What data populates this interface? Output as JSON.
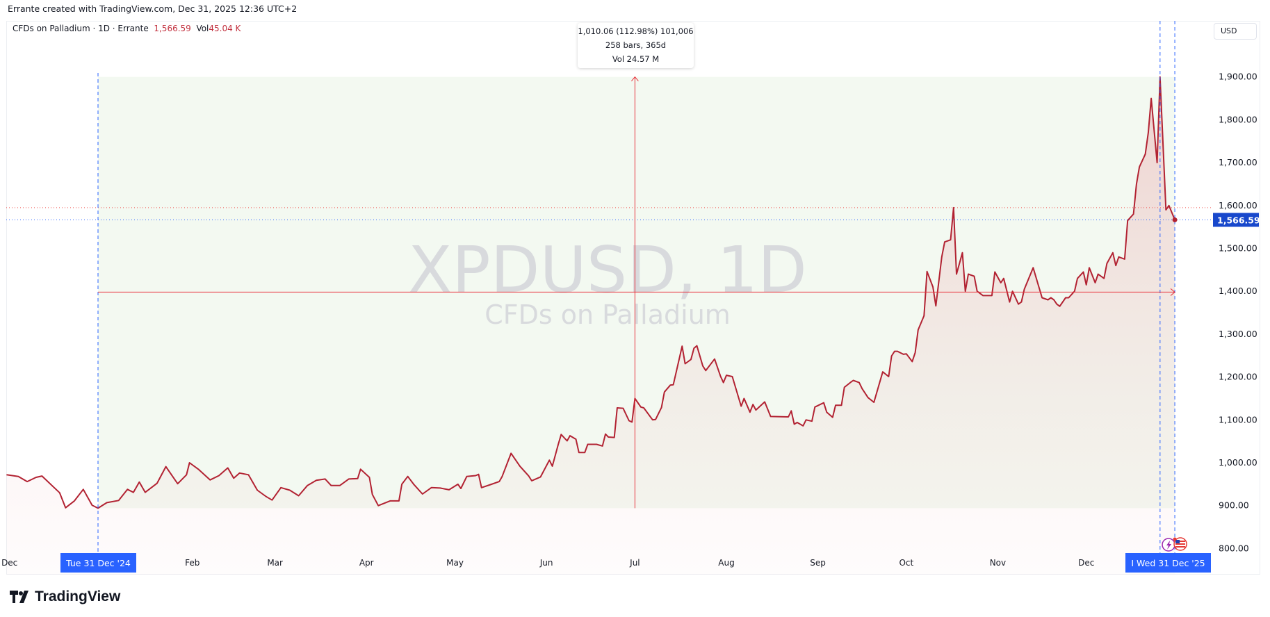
{
  "credit": "Errante created with TradingView.com, Dec 31, 2025 12:36 UTC+2",
  "legend": {
    "symbol_desc": "CFDs on Palladium · 1D · Errante",
    "last_price": "1,566.59",
    "vol_label": "Vol",
    "vol_value": "45.04 K"
  },
  "currency_button": "USD",
  "measure_tooltip": {
    "line1": "1,010.06 (112.98%) 101,006",
    "line2": "258 bars, 365d",
    "line3": "Vol 24.57 M"
  },
  "watermark": {
    "ticker": "XPDUSD, 1D",
    "name": "CFDs on Palladium"
  },
  "brand": "TradingView",
  "colors": {
    "line": "#b22232",
    "range_fill": "#f3f9f1",
    "measure": "#e8323c",
    "crosshair": "#2962ff",
    "price_label_bg": "#1848cc"
  },
  "icons": [
    "lightning-event-icon",
    "us-flag-icon",
    "tradingview-logo-icon"
  ],
  "chart_data": {
    "type": "area",
    "title": "",
    "xlabel": "",
    "ylabel": "",
    "ylim": [
      790,
      1930
    ],
    "xlim": [
      "2024-11-29",
      "2026-01-10"
    ],
    "grid": false,
    "y_ticks": [
      800,
      900,
      1000,
      1100,
      1200,
      1300,
      1400,
      1500,
      1600,
      1700,
      1800,
      1900
    ],
    "y_tick_labels": [
      "800.00",
      "900.00",
      "1,000.00",
      "1,100.00",
      "1,200.00",
      "1,300.00",
      "1,400.00",
      "1,500.00",
      "1,600.00",
      "1,700.00",
      "1,800.00",
      "1,900.00"
    ],
    "x_tick_labels": [
      {
        "date": "2024-12-01",
        "label": "Dec"
      },
      {
        "date": "2025-02-01",
        "label": "Feb"
      },
      {
        "date": "2025-03-01",
        "label": "Mar"
      },
      {
        "date": "2025-04-01",
        "label": "Apr"
      },
      {
        "date": "2025-05-01",
        "label": "May"
      },
      {
        "date": "2025-06-01",
        "label": "Jun"
      },
      {
        "date": "2025-07-01",
        "label": "Jul"
      },
      {
        "date": "2025-08-01",
        "label": "Aug"
      },
      {
        "date": "2025-09-01",
        "label": "Sep"
      },
      {
        "date": "2025-10-01",
        "label": "Oct"
      },
      {
        "date": "2025-11-01",
        "label": "Nov"
      },
      {
        "date": "2025-12-01",
        "label": "Dec"
      }
    ],
    "x_highlight_labels": [
      {
        "date": "2024-12-31",
        "label": "Tue 31 Dec '24"
      },
      {
        "date": "2025-12-31",
        "label": "Wed 31 Dec '25",
        "prefix": "I"
      }
    ],
    "last_price": 1566.59,
    "last_price_label": "1,566.59",
    "previous_close_line": 1595,
    "date_range_measure": {
      "start": "2024-12-31",
      "end": "2025-12-31",
      "low": 894,
      "high": 1900,
      "vertical_at": "2025-07-01",
      "horizontal_at": 1398
    },
    "crosshair_dates": [
      "2025-12-26",
      "2025-12-31"
    ],
    "series": [
      {
        "points": [
          [
            "2024-11-30",
            972
          ],
          [
            "2024-12-04",
            968
          ],
          [
            "2024-12-07",
            956
          ],
          [
            "2024-12-10",
            966
          ],
          [
            "2024-12-12",
            969
          ],
          [
            "2024-12-16",
            943
          ],
          [
            "2024-12-18",
            930
          ],
          [
            "2024-12-20",
            895
          ],
          [
            "2024-12-23",
            911
          ],
          [
            "2024-12-26",
            938
          ],
          [
            "2024-12-29",
            901
          ],
          [
            "2024-12-31",
            894
          ],
          [
            "2025-01-03",
            907
          ],
          [
            "2025-01-07",
            912
          ],
          [
            "2025-01-10",
            938
          ],
          [
            "2025-01-12",
            931
          ],
          [
            "2025-01-14",
            955
          ],
          [
            "2025-01-16",
            931
          ],
          [
            "2025-01-20",
            952
          ],
          [
            "2025-01-23",
            991
          ],
          [
            "2025-01-27",
            951
          ],
          [
            "2025-01-30",
            972
          ],
          [
            "2025-01-31",
            1000
          ],
          [
            "2025-02-03",
            985
          ],
          [
            "2025-02-07",
            960
          ],
          [
            "2025-02-10",
            970
          ],
          [
            "2025-02-13",
            988
          ],
          [
            "2025-02-15",
            964
          ],
          [
            "2025-02-17",
            976
          ],
          [
            "2025-02-20",
            972
          ],
          [
            "2025-02-23",
            936
          ],
          [
            "2025-02-26",
            921
          ],
          [
            "2025-02-28",
            913
          ],
          [
            "2025-03-03",
            942
          ],
          [
            "2025-03-06",
            936
          ],
          [
            "2025-03-09",
            923
          ],
          [
            "2025-03-12",
            947
          ],
          [
            "2025-03-15",
            959
          ],
          [
            "2025-03-18",
            962
          ],
          [
            "2025-03-20",
            947
          ],
          [
            "2025-03-23",
            947
          ],
          [
            "2025-03-26",
            962
          ],
          [
            "2025-03-29",
            963
          ],
          [
            "2025-03-30",
            985
          ],
          [
            "2025-04-02",
            966
          ],
          [
            "2025-04-03",
            926
          ],
          [
            "2025-04-05",
            900
          ],
          [
            "2025-04-09",
            911
          ],
          [
            "2025-04-12",
            911
          ],
          [
            "2025-04-13",
            950
          ],
          [
            "2025-04-15",
            968
          ],
          [
            "2025-04-17",
            950
          ],
          [
            "2025-04-20",
            927
          ],
          [
            "2025-04-23",
            942
          ],
          [
            "2025-04-26",
            941
          ],
          [
            "2025-04-29",
            937
          ],
          [
            "2025-05-02",
            950
          ],
          [
            "2025-05-03",
            940
          ],
          [
            "2025-05-05",
            968
          ],
          [
            "2025-05-08",
            970
          ],
          [
            "2025-05-09",
            973
          ],
          [
            "2025-05-10",
            942
          ],
          [
            "2025-05-13",
            949
          ],
          [
            "2025-05-16",
            956
          ],
          [
            "2025-05-17",
            968
          ],
          [
            "2025-05-20",
            1022
          ],
          [
            "2025-05-23",
            992
          ],
          [
            "2025-05-26",
            969
          ],
          [
            "2025-05-27",
            958
          ],
          [
            "2025-05-30",
            967
          ],
          [
            "2025-06-02",
            1006
          ],
          [
            "2025-06-03",
            992
          ],
          [
            "2025-06-05",
            1043
          ],
          [
            "2025-06-06",
            1066
          ],
          [
            "2025-06-08",
            1051
          ],
          [
            "2025-06-09",
            1063
          ],
          [
            "2025-06-11",
            1055
          ],
          [
            "2025-06-12",
            1024
          ],
          [
            "2025-06-14",
            1024
          ],
          [
            "2025-06-15",
            1043
          ],
          [
            "2025-06-18",
            1043
          ],
          [
            "2025-06-20",
            1039
          ],
          [
            "2025-06-21",
            1067
          ],
          [
            "2025-06-22",
            1060
          ],
          [
            "2025-06-24",
            1059
          ],
          [
            "2025-06-25",
            1128
          ],
          [
            "2025-06-27",
            1127
          ],
          [
            "2025-06-29",
            1098
          ],
          [
            "2025-06-30",
            1095
          ],
          [
            "2025-07-01",
            1150
          ],
          [
            "2025-07-03",
            1130
          ],
          [
            "2025-07-04",
            1128
          ],
          [
            "2025-07-07",
            1100
          ],
          [
            "2025-07-08",
            1101
          ],
          [
            "2025-07-10",
            1129
          ],
          [
            "2025-07-11",
            1165
          ],
          [
            "2025-07-13",
            1181
          ],
          [
            "2025-07-14",
            1182
          ],
          [
            "2025-07-17",
            1272
          ],
          [
            "2025-07-18",
            1231
          ],
          [
            "2025-07-20",
            1241
          ],
          [
            "2025-07-21",
            1267
          ],
          [
            "2025-07-22",
            1273
          ],
          [
            "2025-07-24",
            1226
          ],
          [
            "2025-07-25",
            1215
          ],
          [
            "2025-07-28",
            1242
          ],
          [
            "2025-07-30",
            1202
          ],
          [
            "2025-07-31",
            1187
          ],
          [
            "2025-08-01",
            1204
          ],
          [
            "2025-08-03",
            1201
          ],
          [
            "2025-08-06",
            1132
          ],
          [
            "2025-08-07",
            1150
          ],
          [
            "2025-08-09",
            1118
          ],
          [
            "2025-08-10",
            1136
          ],
          [
            "2025-08-11",
            1123
          ],
          [
            "2025-08-14",
            1142
          ],
          [
            "2025-08-16",
            1108
          ],
          [
            "2025-08-22",
            1107
          ],
          [
            "2025-08-23",
            1121
          ],
          [
            "2025-08-24",
            1090
          ],
          [
            "2025-08-25",
            1094
          ],
          [
            "2025-08-27",
            1086
          ],
          [
            "2025-08-28",
            1100
          ],
          [
            "2025-08-30",
            1097
          ],
          [
            "2025-08-31",
            1130
          ],
          [
            "2025-09-03",
            1140
          ],
          [
            "2025-09-04",
            1118
          ],
          [
            "2025-09-06",
            1106
          ],
          [
            "2025-09-07",
            1134
          ],
          [
            "2025-09-09",
            1134
          ],
          [
            "2025-09-10",
            1176
          ],
          [
            "2025-09-12",
            1187
          ],
          [
            "2025-09-13",
            1192
          ],
          [
            "2025-09-15",
            1187
          ],
          [
            "2025-09-16",
            1173
          ],
          [
            "2025-09-18",
            1152
          ],
          [
            "2025-09-20",
            1141
          ],
          [
            "2025-09-23",
            1212
          ],
          [
            "2025-09-25",
            1201
          ],
          [
            "2025-09-26",
            1249
          ],
          [
            "2025-09-27",
            1260
          ],
          [
            "2025-09-28",
            1260
          ],
          [
            "2025-09-30",
            1253
          ],
          [
            "2025-10-01",
            1254
          ],
          [
            "2025-10-03",
            1236
          ],
          [
            "2025-10-04",
            1257
          ],
          [
            "2025-10-05",
            1310
          ],
          [
            "2025-10-07",
            1343
          ],
          [
            "2025-10-08",
            1446
          ],
          [
            "2025-10-10",
            1410
          ],
          [
            "2025-10-11",
            1366
          ],
          [
            "2025-10-13",
            1480
          ],
          [
            "2025-10-14",
            1515
          ],
          [
            "2025-10-16",
            1520
          ],
          [
            "2025-10-17",
            1595
          ],
          [
            "2025-10-18",
            1440
          ],
          [
            "2025-10-20",
            1490
          ],
          [
            "2025-10-21",
            1400
          ],
          [
            "2025-10-22",
            1440
          ],
          [
            "2025-10-24",
            1435
          ],
          [
            "2025-10-25",
            1400
          ],
          [
            "2025-10-27",
            1390
          ],
          [
            "2025-10-30",
            1390
          ],
          [
            "2025-10-31",
            1445
          ],
          [
            "2025-11-02",
            1420
          ],
          [
            "2025-11-03",
            1430
          ],
          [
            "2025-11-05",
            1375
          ],
          [
            "2025-11-06",
            1400
          ],
          [
            "2025-11-08",
            1370
          ],
          [
            "2025-11-09",
            1375
          ],
          [
            "2025-11-10",
            1405
          ],
          [
            "2025-11-13",
            1455
          ],
          [
            "2025-11-16",
            1385
          ],
          [
            "2025-11-18",
            1380
          ],
          [
            "2025-11-19",
            1385
          ],
          [
            "2025-11-20",
            1380
          ],
          [
            "2025-11-21",
            1370
          ],
          [
            "2025-11-22",
            1365
          ],
          [
            "2025-11-24",
            1385
          ],
          [
            "2025-11-25",
            1385
          ],
          [
            "2025-11-27",
            1400
          ],
          [
            "2025-11-28",
            1430
          ],
          [
            "2025-11-30",
            1445
          ],
          [
            "2025-12-01",
            1415
          ],
          [
            "2025-12-02",
            1455
          ],
          [
            "2025-12-04",
            1420
          ],
          [
            "2025-12-05",
            1440
          ],
          [
            "2025-12-07",
            1430
          ],
          [
            "2025-12-08",
            1465
          ],
          [
            "2025-12-10",
            1490
          ],
          [
            "2025-12-11",
            1460
          ],
          [
            "2025-12-12",
            1480
          ],
          [
            "2025-12-14",
            1475
          ],
          [
            "2025-12-15",
            1565
          ],
          [
            "2025-12-17",
            1580
          ],
          [
            "2025-12-18",
            1650
          ],
          [
            "2025-12-19",
            1690
          ],
          [
            "2025-12-21",
            1720
          ],
          [
            "2025-12-22",
            1770
          ],
          [
            "2025-12-23",
            1850
          ],
          [
            "2025-12-25",
            1700
          ],
          [
            "2025-12-26",
            1900
          ],
          [
            "2025-12-28",
            1590
          ],
          [
            "2025-12-29",
            1600
          ],
          [
            "2025-12-31",
            1566.59
          ]
        ]
      }
    ]
  }
}
